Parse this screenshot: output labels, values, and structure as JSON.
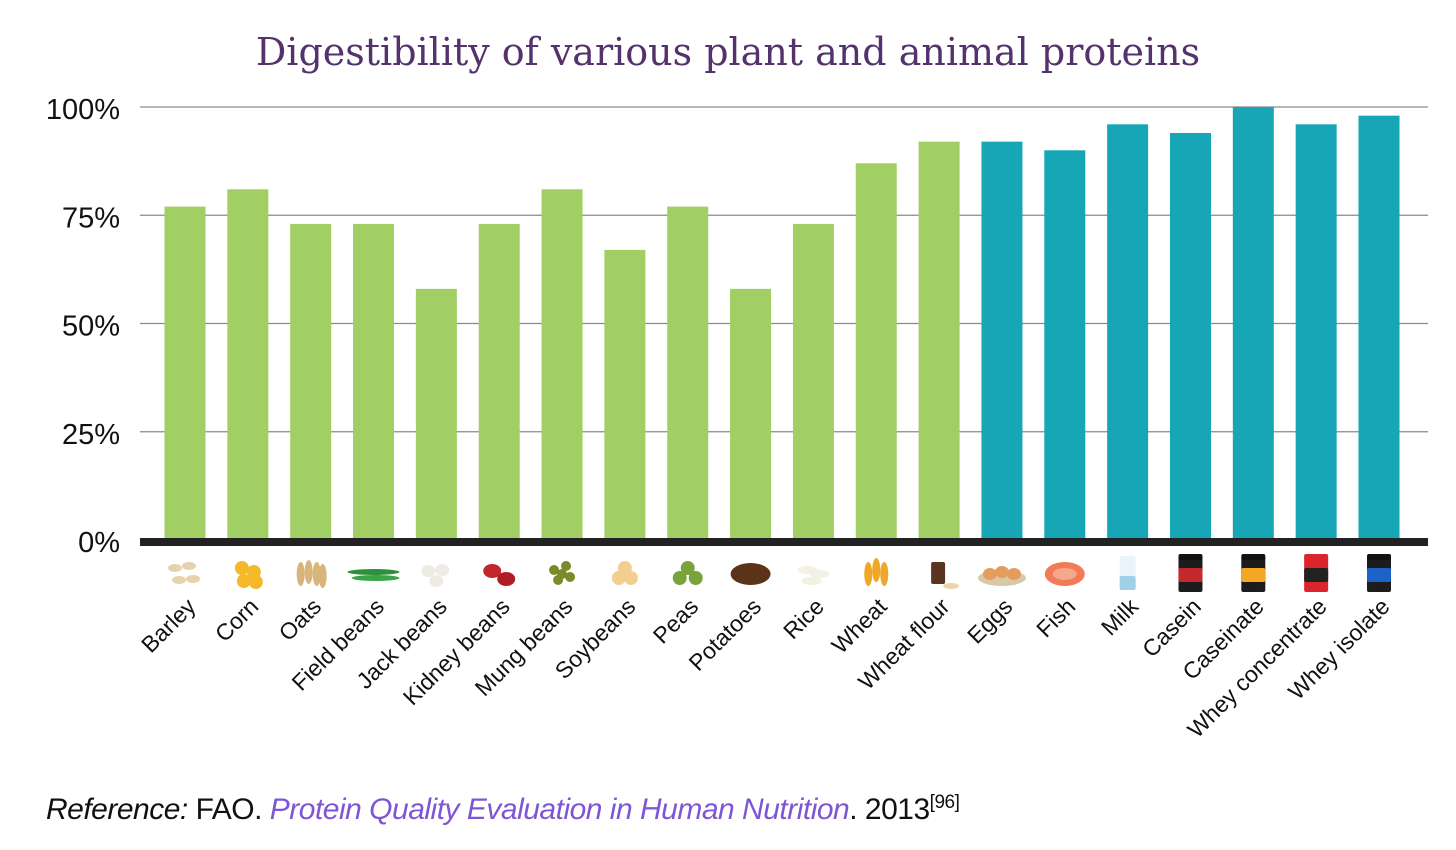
{
  "chart_data": {
    "type": "bar",
    "title": "Digestibility of various plant and animal proteins",
    "xlabel": "",
    "ylabel": "",
    "ylim": [
      0,
      100
    ],
    "yticks": [
      "0%",
      "25%",
      "50%",
      "75%",
      "100%"
    ],
    "grid": true,
    "categories": [
      "Barley",
      "Corn",
      "Oats",
      "Field beans",
      "Jack beans",
      "Kidney beans",
      "Mung beans",
      "Soybeans",
      "Peas",
      "Potatoes",
      "Rice",
      "Wheat",
      "Wheat flour",
      "Eggs",
      "Fish",
      "Milk",
      "Casein",
      "Caseinate",
      "Whey concentrate",
      "Whey isolate"
    ],
    "values": [
      77,
      81,
      73,
      73,
      58,
      73,
      81,
      67,
      77,
      58,
      73,
      87,
      92,
      92,
      90,
      96,
      94,
      100,
      96,
      98
    ],
    "groups": [
      "plant",
      "plant",
      "plant",
      "plant",
      "plant",
      "plant",
      "plant",
      "plant",
      "plant",
      "plant",
      "plant",
      "plant",
      "plant",
      "animal",
      "animal",
      "animal",
      "animal",
      "animal",
      "animal",
      "animal"
    ],
    "colors": {
      "plant": "#a1cf63",
      "animal": "#16a6b6",
      "title": "#53326e",
      "link": "#7e55d4"
    },
    "icons": [
      "barley-icon",
      "corn-icon",
      "oats-icon",
      "field-beans-icon",
      "jack-beans-icon",
      "kidney-beans-icon",
      "mung-beans-icon",
      "soybeans-icon",
      "peas-icon",
      "potato-icon",
      "rice-icon",
      "wheat-icon",
      "wheat-flour-icon",
      "eggs-icon",
      "fish-icon",
      "milk-icon",
      "casein-tub-icon",
      "caseinate-tub-icon",
      "whey-concentrate-tub-icon",
      "whey-isolate-tub-icon"
    ]
  },
  "reference": {
    "label": "Reference:",
    "author": " FAO. ",
    "work": "Protein Quality Evaluation in Human Nutrition",
    "year": ". 2013",
    "citation": "[96]"
  }
}
